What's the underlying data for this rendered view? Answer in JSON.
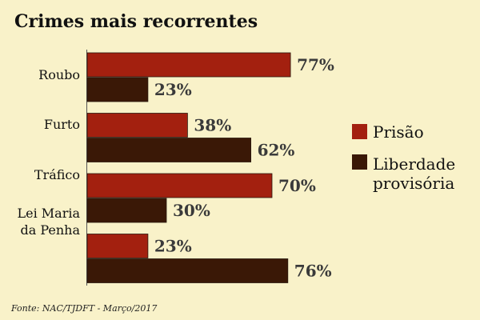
{
  "title": "Crimes mais recorrentes",
  "source": "Fonte: NAC/TJDFT - Março/2017",
  "colors": {
    "background": "#f9f2c9",
    "prisao": "#a3200f",
    "liberdade": "#3a1806"
  },
  "chart_data": {
    "type": "bar",
    "orientation": "horizontal",
    "title": "Crimes mais recorrentes",
    "categories": [
      "Roubo",
      "Furto",
      "Tráfico",
      "Lei Maria da Penha"
    ],
    "category_label_lines": [
      [
        "Roubo"
      ],
      [
        "Furto"
      ],
      [
        "Tráfico"
      ],
      [
        "Lei Maria",
        "da Penha"
      ]
    ],
    "value_suffix": "%",
    "xlim": [
      0,
      100
    ],
    "grid": false,
    "legend_position": "right",
    "series": [
      {
        "name": "Prisão",
        "legend_lines": [
          "Prisão"
        ],
        "color": "#a3200f",
        "values": [
          77,
          38,
          70,
          23
        ]
      },
      {
        "name": "Liberdade provisória",
        "legend_lines": [
          "Liberdade",
          "provisória"
        ],
        "color": "#3a1806",
        "values": [
          23,
          62,
          30,
          76
        ]
      }
    ]
  }
}
